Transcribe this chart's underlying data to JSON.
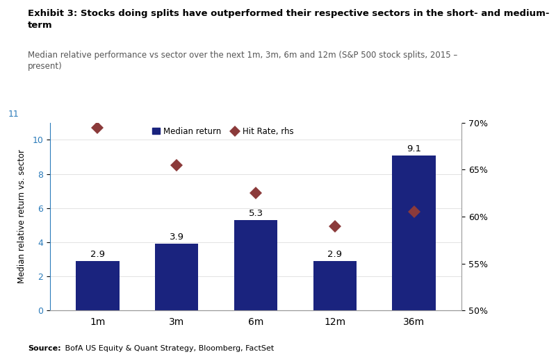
{
  "categories": [
    "1m",
    "3m",
    "6m",
    "12m",
    "36m"
  ],
  "bar_values": [
    2.9,
    3.9,
    5.3,
    2.9,
    9.1
  ],
  "hit_rates": [
    69.5,
    65.5,
    62.5,
    59.0,
    60.5
  ],
  "bar_color": "#1a237e",
  "diamond_color": "#8b3a3a",
  "title_bold": "Exhibit 3: Stocks doing splits have outperformed their respective sectors in the short- and medium-\nterm",
  "subtitle": "Median relative performance vs sector over the next 1m, 3m, 6m and 12m (S&P 500 stock splits, 2015 –\npresent)",
  "ylabel_left": "Median relative return vs. sector",
  "source_bold": "Source:",
  "source_rest": " BofA US Equity & Quant Strategy, Bloomberg, FactSet",
  "ylim_left": [
    0,
    11
  ],
  "ylim_right": [
    50,
    70
  ],
  "yticks_left": [
    0,
    2,
    4,
    6,
    8,
    10
  ],
  "yticks_right": [
    50,
    55,
    60,
    65,
    70
  ],
  "legend_median": "Median return",
  "legend_hitrate": "Hit Rate, rhs",
  "bg_color": "#ffffff",
  "left_tick_color": "#2b7bba",
  "title_color": "#000000",
  "subtitle_color": "#555555",
  "grid_color": "#dddddd"
}
